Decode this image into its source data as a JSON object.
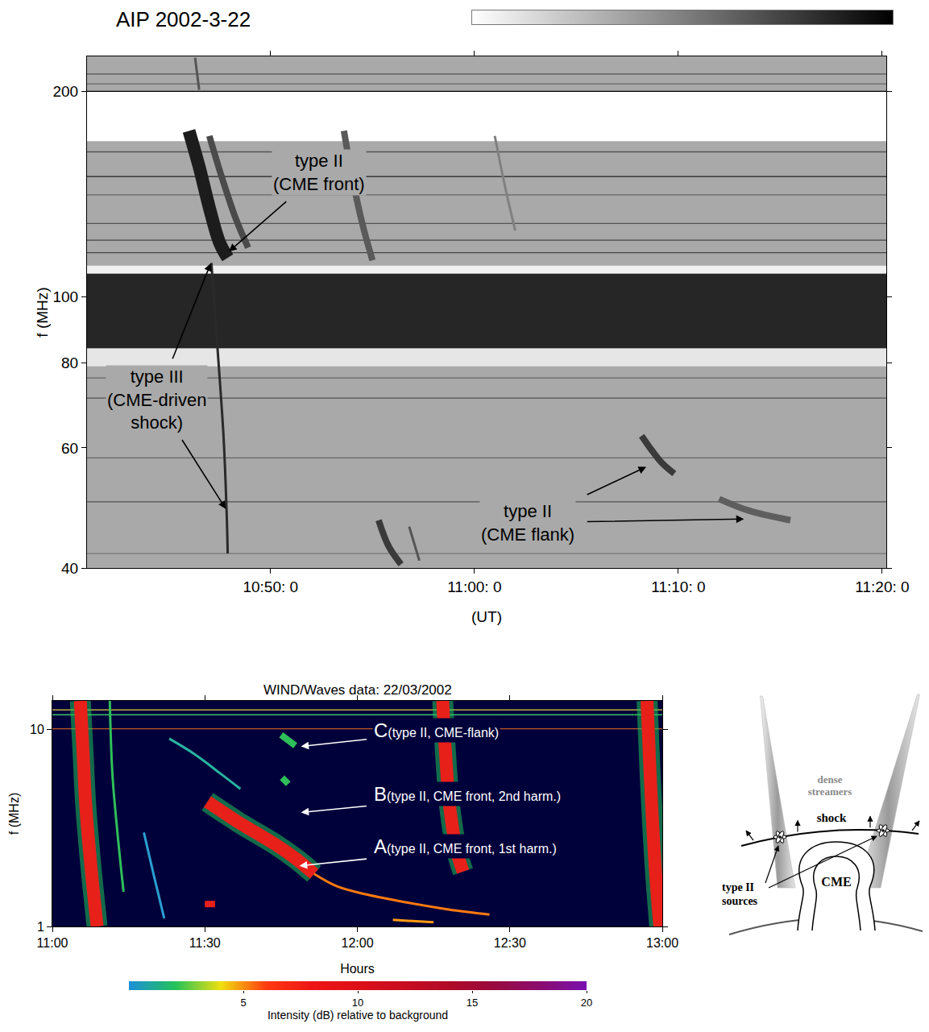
{
  "chart_data": [
    {
      "type": "spectrogram",
      "title": "AIP 2002-3-22",
      "x_label": "(UT)",
      "y_label": "f (MHz)",
      "log": "y",
      "grid": false,
      "xlim": [
        641,
        680.2
      ],
      "xticks": [
        {
          "value": 650,
          "label": "10:50: 0"
        },
        {
          "value": 660,
          "label": "11:00: 0"
        },
        {
          "value": 670,
          "label": "11:10: 0"
        },
        {
          "value": 680,
          "label": "11:20: 0"
        }
      ],
      "ylim": [
        40,
        225
      ],
      "yticks": [
        40,
        60,
        80,
        100,
        200
      ],
      "colorbar": {
        "colors": [
          "#ffffff",
          "#000000"
        ]
      },
      "bands": [
        {
          "from": 169,
          "to": 200,
          "color": "#ffffff"
        },
        {
          "from": 108,
          "to": 111,
          "color": "#f0f0f0"
        },
        {
          "from": 79,
          "to": 84,
          "color": "#e6e6e6"
        },
        {
          "from": 84,
          "to": 108,
          "color": "#262626"
        }
      ],
      "lines": [
        {
          "y": 212,
          "color": "#555555"
        },
        {
          "y": 205,
          "color": "#666666"
        },
        {
          "y": 200,
          "color": "#000000"
        },
        {
          "y": 163,
          "color": "#555555"
        },
        {
          "y": 150,
          "color": "#222222"
        },
        {
          "y": 141,
          "color": "#666666"
        },
        {
          "y": 128,
          "color": "#555555"
        },
        {
          "y": 121,
          "color": "#444444"
        },
        {
          "y": 116,
          "color": "#444444"
        },
        {
          "y": 76,
          "color": "#666666"
        },
        {
          "y": 71,
          "color": "#555555"
        },
        {
          "y": 58,
          "color": "#666666"
        },
        {
          "y": 50,
          "color": "#555555"
        },
        {
          "y": 42,
          "color": "#777777"
        }
      ],
      "features": [
        {
          "x": [
            646.0,
            646.5,
            647.0,
            647.5,
            647.9
          ],
          "y": [
            175,
            155,
            135,
            120,
            114
          ],
          "color": "#1c1c1c",
          "line_style": "broad"
        },
        {
          "x": [
            647.0,
            647.6,
            648.3,
            648.9
          ],
          "y": [
            172,
            150,
            130,
            118
          ],
          "color": "#4a4a4a",
          "line_style": "thick"
        },
        {
          "x": [
            646.3,
            646.5
          ],
          "y": [
            224,
            201
          ],
          "color": "#555555",
          "line_style": "thin"
        },
        {
          "x": [
            647.1,
            647.4,
            647.7,
            647.85,
            647.9
          ],
          "y": [
            112,
            84,
            62,
            48,
            42
          ],
          "color": "#2a2a2a",
          "line_style": "thin"
        },
        {
          "x": [
            653.6,
            654.0,
            654.5,
            655.0
          ],
          "y": [
            175,
            150,
            128,
            113
          ],
          "color": "#5a5a5a",
          "line_style": "thick"
        },
        {
          "x": [
            655.3,
            655.8,
            656.4
          ],
          "y": [
            47,
            43,
            40.5
          ],
          "color": "#3a3a3a",
          "line_style": "thick"
        },
        {
          "x": [
            656.8,
            657.3
          ],
          "y": [
            46,
            41
          ],
          "color": "#555555",
          "line_style": "thin"
        },
        {
          "x": [
            661.0,
            661.5,
            662.0
          ],
          "y": [
            172,
            145,
            125
          ],
          "color": "#808080",
          "line_style": "thin"
        },
        {
          "x": [
            668.2,
            668.7,
            669.2,
            669.8
          ],
          "y": [
            62.5,
            59.5,
            57,
            55
          ],
          "color": "#3a3a3a",
          "line_style": "thick"
        },
        {
          "x": [
            672.0,
            673.5,
            675.5
          ],
          "y": [
            50.5,
            48.5,
            47
          ],
          "color": "#5e5e5e",
          "line_style": "thick"
        }
      ],
      "annotations": [
        {
          "text": [
            "type II",
            "(CME front)"
          ],
          "x": 652.4,
          "y": 152,
          "arrows": [
            {
              "x": 647.9,
              "y": 116
            }
          ]
        },
        {
          "text": [
            "type III",
            "(CME-driven",
            "shock)"
          ],
          "x": 644.4,
          "y": 70.7,
          "arrows": [
            {
              "x": 647.1,
              "y": 112.5
            },
            {
              "x": 647.85,
              "y": 48.6
            }
          ]
        },
        {
          "text": [
            "type II",
            "(CME flank)"
          ],
          "x": 662.6,
          "y": 46.6,
          "arrows": [
            {
              "x": 668.5,
              "y": 56.4
            },
            {
              "x": 673.3,
              "y": 47.2
            }
          ]
        }
      ]
    },
    {
      "type": "spectrogram",
      "title": "WIND/Waves data: 22/03/2002",
      "x_label": "Hours",
      "y_label": "f (MHz)",
      "log": "y",
      "grid": false,
      "xlim": [
        660,
        780
      ],
      "xticks": [
        {
          "value": 660,
          "label": "11:00"
        },
        {
          "value": 690,
          "label": "11:30"
        },
        {
          "value": 720,
          "label": "12:00"
        },
        {
          "value": 750,
          "label": "12:30"
        },
        {
          "value": 780,
          "label": "13:00"
        }
      ],
      "ylim": [
        1,
        14
      ],
      "yticks": [
        1,
        10
      ],
      "colorbar": {
        "title": "Intensity (dB) relative to background",
        "range": [
          0,
          20
        ],
        "ticks": [
          5,
          10,
          15,
          20
        ],
        "colors": [
          "#1b8fd8",
          "#22c25a",
          "#f0e010",
          "#ff3a10",
          "#ee1515",
          "#dd1018",
          "#c80c20",
          "#b00a28",
          "#980a40",
          "#8a0c70",
          "#7a10b0"
        ]
      },
      "bands": [],
      "lines": [
        {
          "y": 12.6,
          "color": "#e0d040"
        },
        {
          "y": 11.9,
          "color": "#3fbf6a"
        },
        {
          "y": 10.1,
          "color": "#c05a20"
        }
      ],
      "features": [
        {
          "x": [
            665.5,
            666.0,
            666.6,
            667.6,
            668.8
          ],
          "y": [
            14,
            8,
            4,
            2,
            1
          ],
          "color": "#e8201a",
          "line_style": "broad"
        },
        {
          "x": [
            671.3,
            671.8,
            672.8,
            674.0
          ],
          "y": [
            14,
            6,
            3,
            1.5
          ],
          "color": "#2fbf5a",
          "line_style": "thin"
        },
        {
          "x": [
            678.0,
            680.0,
            682.0
          ],
          "y": [
            3.0,
            1.8,
            1.1
          ],
          "color": "#2a9fd0",
          "line_style": "thin"
        },
        {
          "x": [
            683.0,
            688.0,
            693.0,
            697.0
          ],
          "y": [
            9,
            7.5,
            6,
            5
          ],
          "color": "#28b4a0",
          "line_style": "thin"
        },
        {
          "x": [
            690.5,
            693.0,
            696.5,
            700.0,
            704.0,
            708.0,
            711.5
          ],
          "y": [
            4.3,
            3.9,
            3.4,
            3.0,
            2.6,
            2.2,
            1.85
          ],
          "color": "#e8201a",
          "line_style": "broad"
        },
        {
          "x": [
            711.5,
            716.0,
            722.0,
            730.0,
            738.0,
            746.0
          ],
          "y": [
            1.85,
            1.6,
            1.45,
            1.32,
            1.22,
            1.15
          ],
          "color": "#ff7a10",
          "line_style": "thin"
        },
        {
          "x": [
            690.0,
            692.0
          ],
          "y": [
            1.3,
            1.3
          ],
          "color": "#e8201a",
          "line_style": "thick"
        },
        {
          "x": [
            705.2,
            706.4
          ],
          "y": [
            5.7,
            5.3
          ],
          "color": "#2fbf5a",
          "line_style": "thick"
        },
        {
          "x": [
            705.0,
            707.8
          ],
          "y": [
            9.4,
            8.3
          ],
          "color": "#2fbf5a",
          "line_style": "thick"
        },
        {
          "x": [
            736.8,
            737.3,
            738.2,
            739.6,
            740.8
          ],
          "y": [
            14,
            8,
            4,
            2.4,
            1.9
          ],
          "color": "#e8201a",
          "line_style": "broad"
        },
        {
          "x": [
            777.0,
            777.6,
            778.6,
            779.5
          ],
          "y": [
            14,
            6,
            2,
            1
          ],
          "color": "#e8201a",
          "line_style": "broad"
        },
        {
          "x": [
            727,
            735
          ],
          "y": [
            1.08,
            1.05
          ],
          "color": "#ff9a10",
          "line_style": "thin"
        }
      ],
      "annotations": [
        {
          "letter": "C",
          "text": "(type II, CME-flank)",
          "x": 723,
          "y": 9.9,
          "arrows": [
            {
              "x": 708.6,
              "y": 8.2
            }
          ]
        },
        {
          "letter": "B",
          "text": "(type II, CME front, 2nd harm.)",
          "x": 723,
          "y": 4.7,
          "arrows": [
            {
              "x": 708.6,
              "y": 3.79
            }
          ]
        },
        {
          "letter": "A",
          "text": "(type II, CME front, 1st harm.)",
          "x": 723,
          "y": 2.55,
          "arrows": [
            {
              "x": 708.3,
              "y": 2.03
            }
          ]
        }
      ]
    }
  ],
  "diagram": {
    "streamers": [
      "dense",
      "streamers"
    ],
    "shock": "shock",
    "cme": "CME",
    "sources": [
      "type II",
      "sources"
    ]
  }
}
